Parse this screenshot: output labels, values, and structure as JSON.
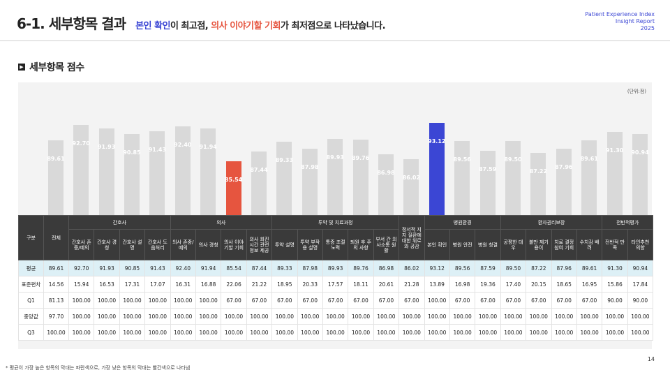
{
  "header": {
    "section_num": "6-1. 세부항목 결과",
    "sub_hl1": "본인 확인",
    "sub_mid": "이 최고점, ",
    "sub_hl2": "의사 이야기할 기회",
    "sub_end": "가 최저점으로 나타났습니다.",
    "report_line1": "Patient Experience Index",
    "report_line2": "Insight Report",
    "report_line3": "2025"
  },
  "section_title": "세부항목 점수",
  "unit": "(단위:점)",
  "footnote": "* 평균이 가장 높은 항목의 막대는 파란색으로, 가장 낮은 항목의 막대는 빨간색으로 나타냄",
  "page_number": "14",
  "colors": {
    "bar": "#d9d9d9",
    "highest": "#3b46d4",
    "lowest": "#e6553f",
    "header_bg": "#3a3a3a",
    "avg_row": "#ddf0f6"
  },
  "chart_data": {
    "type": "bar",
    "title": "",
    "xlabel": "",
    "ylabel": "",
    "categories": [
      "전체",
      "간호사 존중/예의",
      "간호사 경청",
      "간호사 설명",
      "간호사 도움처리",
      "의사 존중/예의",
      "의사 경청",
      "의사 이야기할 기회",
      "의사 회진시간 관련 정보 제공",
      "투약 설명",
      "투약 부작용 설명",
      "통증 조절 노력",
      "퇴원 후 주의 사항",
      "부서 간 의사소통 원활",
      "정서적 지지 질환에 대한 위로와 공감",
      "본인 확인",
      "병원 안전",
      "병원 청결",
      "공평한 대우",
      "불만 제기 용이",
      "치료 결정 참여 기회",
      "수치감 배려",
      "전반적 만족",
      "타인추천 의향"
    ],
    "values": [
      89.61,
      92.7,
      91.93,
      90.85,
      91.43,
      92.4,
      91.94,
      85.54,
      87.44,
      89.33,
      87.98,
      89.93,
      89.76,
      86.98,
      86.02,
      93.12,
      89.56,
      87.59,
      89.5,
      87.22,
      87.96,
      89.61,
      91.3,
      90.94
    ],
    "highlight_high_index": 15,
    "highlight_low_index": 7,
    "ylim": [
      0,
      100
    ]
  },
  "table": {
    "corner_label": "구분",
    "total_label": "전체",
    "groups": [
      {
        "label": "간호사",
        "span": 4
      },
      {
        "label": "의사",
        "span": 4
      },
      {
        "label": "투약 및 치료과정",
        "span": 5
      },
      {
        "label": "정서적 지지 질환에 대한 위로와 공감",
        "span": 1
      },
      {
        "label": "병원환경",
        "span": 3
      },
      {
        "label": "환자권리보장",
        "span": 4
      },
      {
        "label": "전반적평가",
        "span": 2
      }
    ],
    "subheaders": [
      "간호사 존중/예의",
      "간호사 경청",
      "간호사 설명",
      "간호사 도움처리",
      "의사 존중/예의",
      "의사 경청",
      "의사 이야기할 기회",
      "의사 회진시간 관련 정보 제공",
      "투약 설명",
      "투약 부작용 설명",
      "통증 조절 노력",
      "퇴원 후 주의 사항",
      "부서 간 의사소통 원활",
      "위로와 공감",
      "본인 확인",
      "병원 안전",
      "병원 청결",
      "공평한 대우",
      "불만 제기 용이",
      "치료 결정 참여 기회",
      "수치감 배려",
      "전반적 만족",
      "타인추천 의향"
    ],
    "rows": [
      {
        "label": "평균",
        "cells": [
          "89.61",
          "92.70",
          "91.93",
          "90.85",
          "91.43",
          "92.40",
          "91.94",
          "85.54",
          "87.44",
          "89.33",
          "87.98",
          "89.93",
          "89.76",
          "86.98",
          "86.02",
          "93.12",
          "89.56",
          "87.59",
          "89.50",
          "87.22",
          "87.96",
          "89.61",
          "91.30",
          "90.94"
        ]
      },
      {
        "label": "표준편차",
        "cells": [
          "14.56",
          "15.94",
          "16.53",
          "17.31",
          "17.07",
          "16.31",
          "16.88",
          "22.06",
          "21.22",
          "18.95",
          "20.33",
          "17.57",
          "18.11",
          "20.61",
          "21.28",
          "13.89",
          "16.98",
          "19.36",
          "17.40",
          "20.15",
          "18.65",
          "16.95",
          "15.86",
          "17.84"
        ]
      },
      {
        "label": "Q1",
        "cells": [
          "81.13",
          "100.00",
          "100.00",
          "100.00",
          "100.00",
          "100.00",
          "100.00",
          "67.00",
          "67.00",
          "67.00",
          "67.00",
          "67.00",
          "67.00",
          "67.00",
          "67.00",
          "100.00",
          "67.00",
          "67.00",
          "67.00",
          "67.00",
          "67.00",
          "67.00",
          "90.00",
          "90.00"
        ]
      },
      {
        "label": "중앙값",
        "cells": [
          "97.70",
          "100.00",
          "100.00",
          "100.00",
          "100.00",
          "100.00",
          "100.00",
          "100.00",
          "100.00",
          "100.00",
          "100.00",
          "100.00",
          "100.00",
          "100.00",
          "100.00",
          "100.00",
          "100.00",
          "100.00",
          "100.00",
          "100.00",
          "100.00",
          "100.00",
          "100.00",
          "100.00"
        ]
      },
      {
        "label": "Q3",
        "cells": [
          "100.00",
          "100.00",
          "100.00",
          "100.00",
          "100.00",
          "100.00",
          "100.00",
          "100.00",
          "100.00",
          "100.00",
          "100.00",
          "100.00",
          "100.00",
          "100.00",
          "100.00",
          "100.00",
          "100.00",
          "100.00",
          "100.00",
          "100.00",
          "100.00",
          "100.00",
          "100.00",
          "100.00"
        ]
      }
    ]
  }
}
